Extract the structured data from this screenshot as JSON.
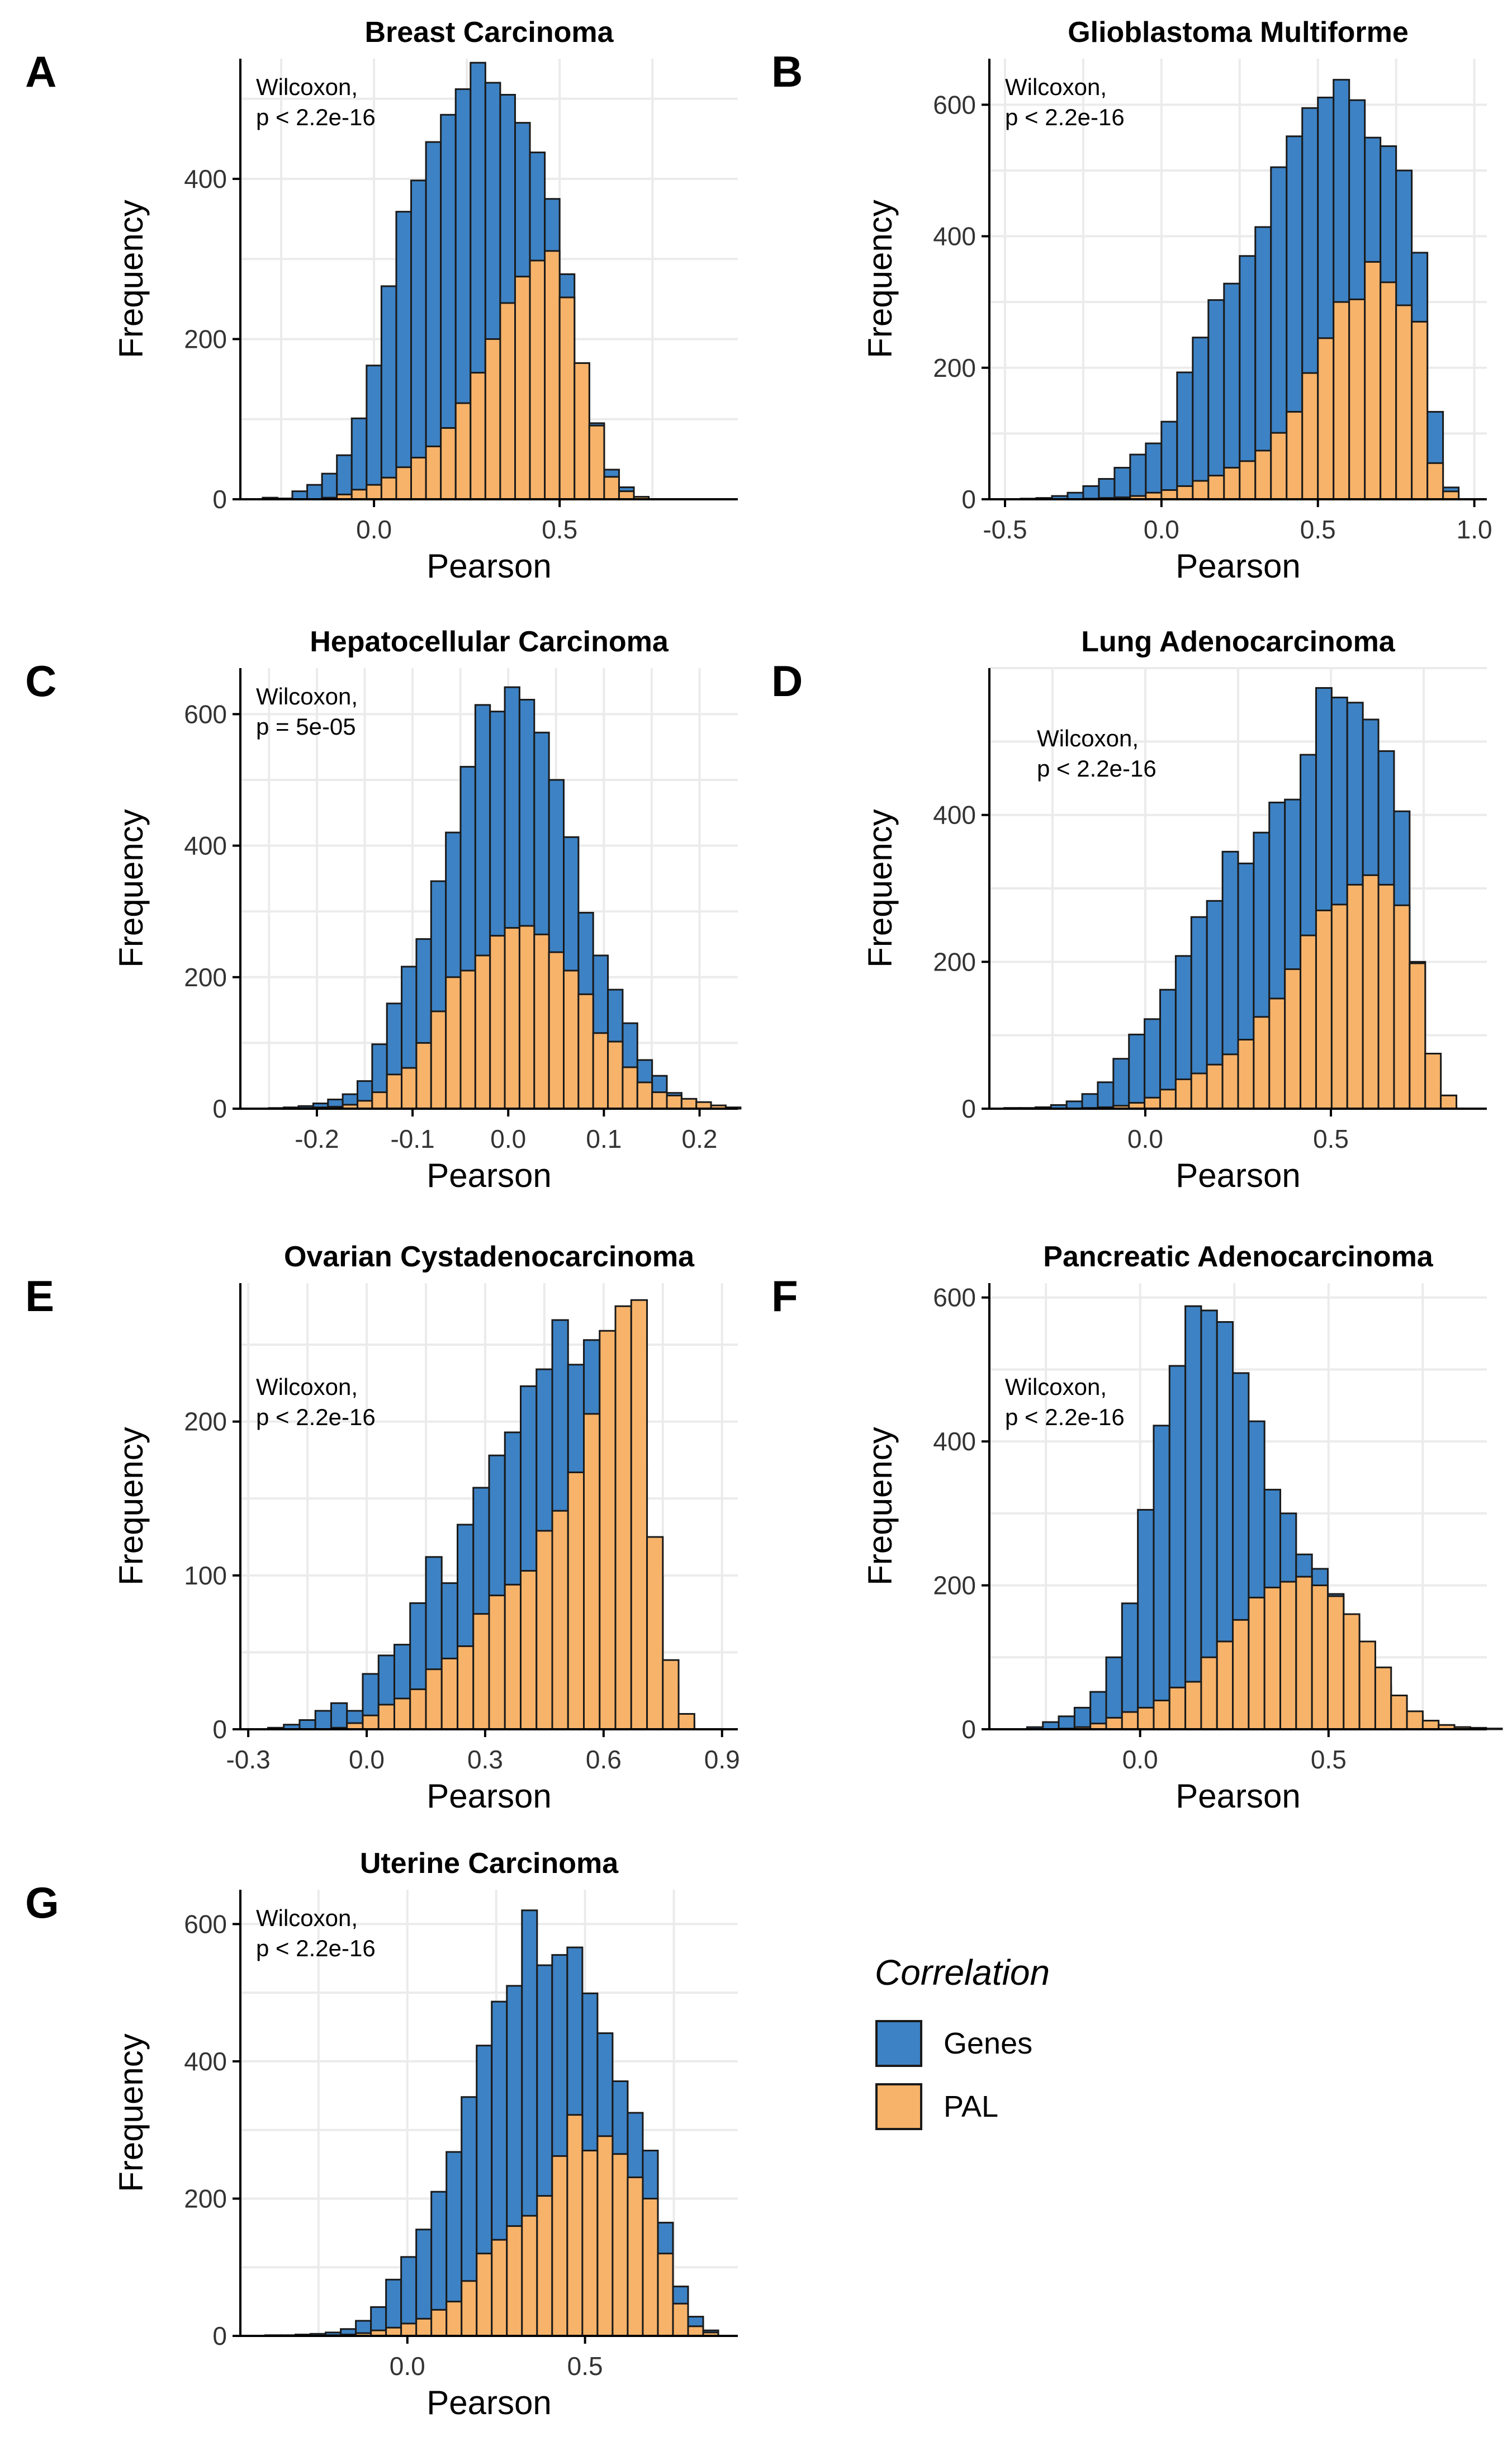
{
  "x_axis_label": "Pearson",
  "y_axis_label": "Frequency",
  "legend": {
    "title": "Correlation",
    "items": [
      {
        "label": "Genes",
        "color": "#3d82c4"
      },
      {
        "label": "PAL",
        "color": "#f7b36a"
      }
    ]
  },
  "colors": {
    "genes": "#3d82c4",
    "pal": "#f7b36a",
    "outline": "#1a1a1a",
    "grid": "#ebebeb"
  },
  "chart_data": [
    {
      "panel": "A",
      "type": "bar",
      "title": "Breast Carcinoma",
      "annotation": [
        "Wilcoxon,",
        "p < 2.2e-16"
      ],
      "xlabel": "Pearson",
      "ylabel": "Frequency",
      "xlim": [
        -0.36,
        0.98
      ],
      "ylim": [
        0,
        550
      ],
      "xticks": [
        0.0,
        0.5
      ],
      "xtick_labels": [
        "0.0",
        "0.5"
      ],
      "yticks": [
        0,
        200,
        400
      ],
      "ytick_labels": [
        "0",
        "200",
        "400"
      ],
      "bin_start": -0.3,
      "bin_width": 0.04,
      "series": [
        {
          "name": "Genes",
          "values": [
            2,
            1,
            10,
            18,
            32,
            55,
            101,
            167,
            266,
            359,
            398,
            446,
            480,
            512,
            545,
            520,
            505,
            470,
            433,
            375,
            281,
            170,
            95,
            37,
            15,
            3
          ]
        },
        {
          "name": "PAL",
          "values": [
            0,
            0,
            0,
            0,
            2,
            6,
            12,
            18,
            27,
            40,
            52,
            66,
            89,
            120,
            158,
            200,
            245,
            278,
            298,
            310,
            252,
            170,
            92,
            28,
            10,
            3
          ]
        }
      ]
    },
    {
      "panel": "B",
      "type": "bar",
      "title": "Glioblastoma Multiforme",
      "annotation": [
        "Wilcoxon,",
        "p < 2.2e-16"
      ],
      "xlabel": "Pearson",
      "ylabel": "Frequency",
      "xlim": [
        -0.55,
        1.04
      ],
      "ylim": [
        0,
        670
      ],
      "xticks": [
        -0.5,
        0.0,
        0.5,
        1.0
      ],
      "xtick_labels": [
        "-0.5",
        "0.0",
        "0.5",
        "1.0"
      ],
      "yticks": [
        0,
        200,
        400,
        600
      ],
      "ytick_labels": [
        "0",
        "200",
        "400",
        "600"
      ],
      "bin_start": -0.45,
      "bin_width": 0.05,
      "series": [
        {
          "name": "Genes",
          "values": [
            1,
            2,
            5,
            10,
            20,
            31,
            48,
            68,
            85,
            118,
            193,
            246,
            303,
            328,
            370,
            414,
            505,
            552,
            595,
            611,
            638,
            607,
            550,
            537,
            500,
            375,
            133,
            18
          ]
        },
        {
          "name": "PAL",
          "values": [
            0,
            0,
            0,
            0,
            1,
            2,
            3,
            5,
            10,
            14,
            20,
            28,
            36,
            48,
            58,
            74,
            101,
            133,
            192,
            245,
            300,
            304,
            361,
            330,
            295,
            270,
            55,
            12
          ]
        }
      ]
    },
    {
      "panel": "C",
      "type": "bar",
      "title": "Hepatocellular Carcinoma",
      "annotation": [
        "Wilcoxon,",
        "p = 5e-05"
      ],
      "xlabel": "Pearson",
      "ylabel": "Frequency",
      "xlim": [
        -0.28,
        0.24
      ],
      "ylim": [
        0,
        670
      ],
      "xticks": [
        -0.2,
        -0.1,
        0.0,
        0.1,
        0.2
      ],
      "xtick_labels": [
        "-0.2",
        "-0.1",
        "0.0",
        "0.1",
        "0.2"
      ],
      "yticks": [
        0,
        200,
        400,
        600
      ],
      "ytick_labels": [
        "0",
        "200",
        "400",
        "600"
      ],
      "bin_start": -0.25,
      "bin_width": 0.0154,
      "series": [
        {
          "name": "Genes",
          "values": [
            1,
            2,
            4,
            8,
            14,
            22,
            42,
            98,
            160,
            216,
            258,
            346,
            420,
            520,
            614,
            604,
            641,
            622,
            572,
            500,
            413,
            298,
            233,
            181,
            130,
            74,
            50,
            24,
            14,
            8,
            3,
            1
          ]
        },
        {
          "name": "PAL",
          "values": [
            0,
            0,
            1,
            2,
            3,
            6,
            12,
            25,
            52,
            62,
            100,
            148,
            200,
            210,
            233,
            263,
            275,
            278,
            265,
            238,
            210,
            174,
            115,
            102,
            63,
            40,
            25,
            20,
            15,
            10,
            5,
            2
          ]
        }
      ]
    },
    {
      "panel": "D",
      "type": "bar",
      "title": "Lung Adenocarcinoma",
      "annotation": [
        "Wilcoxon,",
        "p < 2.2e-16"
      ],
      "xlabel": "Pearson",
      "ylabel": "Frequency",
      "xlim": [
        -0.42,
        0.92
      ],
      "ylim": [
        0,
        600
      ],
      "xticks": [
        0.0,
        0.5
      ],
      "xtick_labels": [
        "0.0",
        "0.5"
      ],
      "yticks": [
        0,
        200,
        400
      ],
      "ytick_labels": [
        "0",
        "200",
        "400"
      ],
      "bin_start": -0.38,
      "bin_width": 0.042,
      "series": [
        {
          "name": "Genes",
          "values": [
            1,
            1,
            2,
            5,
            10,
            20,
            36,
            68,
            101,
            122,
            162,
            208,
            261,
            283,
            350,
            334,
            376,
            417,
            421,
            482,
            573,
            560,
            553,
            530,
            487,
            405,
            200,
            67,
            18
          ]
        },
        {
          "name": "PAL",
          "values": [
            0,
            0,
            0,
            0,
            0,
            1,
            2,
            4,
            8,
            15,
            26,
            40,
            48,
            60,
            74,
            94,
            125,
            150,
            190,
            236,
            270,
            278,
            305,
            318,
            305,
            277,
            198,
            75,
            18
          ]
        }
      ]
    },
    {
      "panel": "E",
      "type": "bar",
      "title": "Ovarian Cystadenocarcinoma",
      "annotation": [
        "Wilcoxon,",
        "p < 2.2e-16"
      ],
      "xlabel": "Pearson",
      "ylabel": "Frequency",
      "xlim": [
        -0.32,
        0.94
      ],
      "ylim": [
        0,
        290
      ],
      "xticks": [
        -0.3,
        0.0,
        0.3,
        0.6,
        0.9
      ],
      "xtick_labels": [
        "-0.3",
        "0.0",
        "0.3",
        "0.6",
        "0.9"
      ],
      "yticks": [
        0,
        100,
        200
      ],
      "ytick_labels": [
        "0",
        "100",
        "200"
      ],
      "bin_start": -0.25,
      "bin_width": 0.04,
      "series": [
        {
          "name": "Genes",
          "values": [
            1,
            3,
            6,
            12,
            17,
            12,
            36,
            48,
            55,
            82,
            112,
            95,
            133,
            157,
            178,
            193,
            223,
            234,
            266,
            237,
            253,
            245,
            198,
            170,
            99,
            30,
            5
          ]
        },
        {
          "name": "PAL",
          "values": [
            0,
            0,
            0,
            0,
            1,
            4,
            9,
            16,
            20,
            26,
            39,
            46,
            54,
            75,
            87,
            94,
            103,
            129,
            142,
            167,
            205,
            259,
            275,
            279,
            125,
            45,
            10
          ]
        }
      ]
    },
    {
      "panel": "F",
      "type": "bar",
      "title": "Pancreatic Adenocarcinoma",
      "annotation": [
        "Wilcoxon,",
        "p < 2.2e-16"
      ],
      "xlabel": "Pearson",
      "ylabel": "Frequency",
      "xlim": [
        -0.4,
        0.92
      ],
      "ylim": [
        0,
        620
      ],
      "xticks": [
        0.0,
        0.5
      ],
      "xtick_labels": [
        "0.0",
        "0.5"
      ],
      "yticks": [
        0,
        200,
        400,
        600
      ],
      "ytick_labels": [
        "0",
        "200",
        "400",
        "600"
      ],
      "bin_start": -0.3,
      "bin_width": 0.042,
      "series": [
        {
          "name": "Genes",
          "values": [
            3,
            10,
            18,
            30,
            52,
            100,
            175,
            305,
            422,
            505,
            588,
            582,
            566,
            495,
            428,
            333,
            300,
            243,
            223,
            188,
            150,
            98,
            60,
            38,
            18,
            8,
            5,
            3,
            2,
            1
          ]
        },
        {
          "name": "PAL",
          "values": [
            0,
            0,
            1,
            3,
            8,
            16,
            24,
            30,
            40,
            58,
            66,
            100,
            122,
            152,
            183,
            197,
            205,
            212,
            200,
            185,
            160,
            122,
            86,
            47,
            25,
            12,
            6,
            3,
            2,
            1
          ]
        }
      ]
    },
    {
      "panel": "G",
      "type": "bar",
      "title": "Uterine Carcinoma",
      "annotation": [
        "Wilcoxon,",
        "p < 2.2e-16"
      ],
      "xlabel": "Pearson",
      "ylabel": "Frequency",
      "xlim": [
        -0.47,
        0.93
      ],
      "ylim": [
        0,
        650
      ],
      "xticks": [
        0.0,
        0.5
      ],
      "xtick_labels": [
        "0.0",
        "0.5"
      ],
      "yticks": [
        0,
        200,
        400,
        600
      ],
      "ytick_labels": [
        "0",
        "200",
        "400",
        "600"
      ],
      "bin_start": -0.4,
      "bin_width": 0.0425,
      "series": [
        {
          "name": "Genes",
          "values": [
            1,
            1,
            2,
            3,
            5,
            10,
            22,
            42,
            82,
            115,
            155,
            210,
            268,
            348,
            423,
            487,
            510,
            620,
            540,
            555,
            566,
            499,
            441,
            371,
            325,
            270,
            165,
            72,
            28,
            8
          ]
        },
        {
          "name": "PAL",
          "values": [
            0,
            0,
            0,
            0,
            1,
            2,
            4,
            8,
            12,
            18,
            25,
            38,
            50,
            80,
            120,
            140,
            160,
            175,
            204,
            262,
            322,
            270,
            291,
            265,
            231,
            200,
            120,
            47,
            14,
            5
          ]
        }
      ]
    }
  ]
}
